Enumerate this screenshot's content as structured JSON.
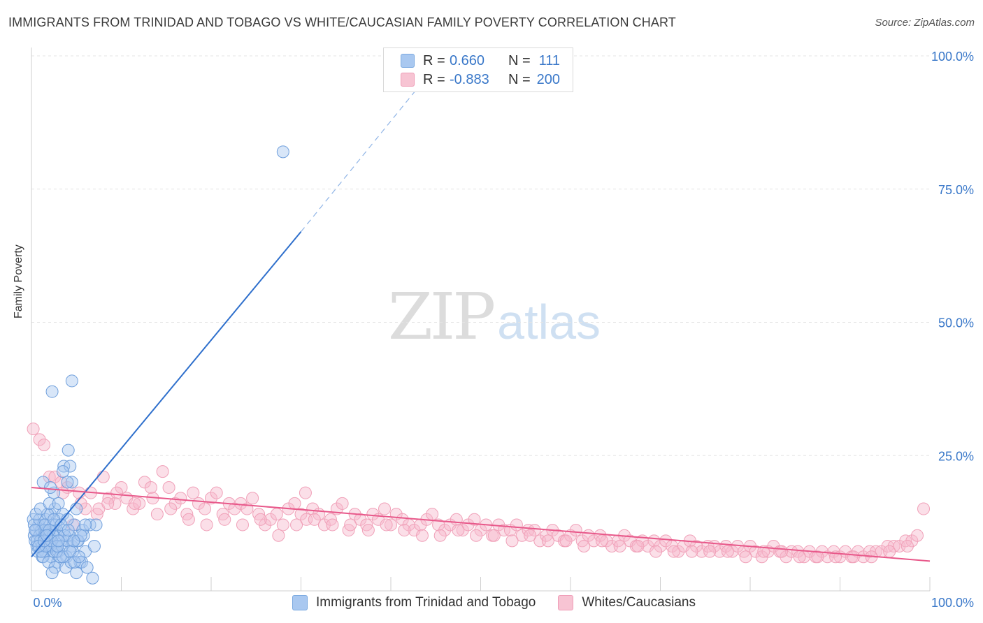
{
  "header": {
    "title": "IMMIGRANTS FROM TRINIDAD AND TOBAGO VS WHITE/CAUCASIAN FAMILY POVERTY CORRELATION CHART",
    "source": "Source: ZipAtlas.com"
  },
  "watermark": {
    "zip": "ZIP",
    "atlas": "atlas"
  },
  "legend": {
    "rows": [
      {
        "r_label": "R =",
        "r_value": "0.660",
        "n_label": "N =",
        "n_value": "111",
        "color": "#a9c8f0"
      },
      {
        "r_label": "R =",
        "r_value": "-0.883",
        "n_label": "N =",
        "n_value": "200",
        "color": "#f7b8cb"
      }
    ]
  },
  "bottom_legend": {
    "items": [
      {
        "label": "Immigrants from Trinidad and Tobago",
        "color": "#a9c8f0"
      },
      {
        "label": "Whites/Caucasians",
        "color": "#f7b8cb"
      }
    ]
  },
  "chart_data": {
    "type": "scatter",
    "title": "IMMIGRANTS FROM TRINIDAD AND TOBAGO VS WHITE/CAUCASIAN FAMILY POVERTY CORRELATION CHART",
    "xlabel": "",
    "ylabel": "Family Poverty",
    "xlim": [
      0,
      100
    ],
    "ylim": [
      0,
      100
    ],
    "x_tick_labels": [
      "0.0%",
      "100.0%"
    ],
    "y_ticks": [
      25,
      50,
      75,
      100
    ],
    "y_tick_labels": [
      "25.0%",
      "50.0%",
      "75.0%",
      "100.0%"
    ],
    "grid": "horizontal dashed",
    "legend_position": "top-center",
    "colors": {
      "blue": "#4a8ad8",
      "blue_line": "#2e6fcc",
      "pink": "#f08aa8",
      "pink_line": "#e8588a"
    },
    "series": [
      {
        "name": "Immigrants from Trinidad and Tobago",
        "r": 0.66,
        "n": 111,
        "points": [
          [
            0.3,
            10
          ],
          [
            0.5,
            11
          ],
          [
            0.4,
            9
          ],
          [
            0.6,
            8
          ],
          [
            0.8,
            12
          ],
          [
            0.2,
            13
          ],
          [
            0.7,
            7
          ],
          [
            0.9,
            10
          ],
          [
            1.0,
            9
          ],
          [
            1.1,
            11
          ],
          [
            1.2,
            8
          ],
          [
            1.3,
            12
          ],
          [
            1.4,
            10
          ],
          [
            1.5,
            7
          ],
          [
            1.6,
            13
          ],
          [
            1.7,
            9
          ],
          [
            1.8,
            11
          ],
          [
            1.9,
            8
          ],
          [
            2.0,
            10
          ],
          [
            2.1,
            14
          ],
          [
            2.2,
            6
          ],
          [
            2.3,
            9
          ],
          [
            2.4,
            12
          ],
          [
            2.5,
            7
          ],
          [
            2.6,
            15
          ],
          [
            2.7,
            8
          ],
          [
            2.8,
            11
          ],
          [
            2.9,
            5
          ],
          [
            3.0,
            10
          ],
          [
            3.1,
            13
          ],
          [
            0.3,
            12
          ],
          [
            0.6,
            9
          ],
          [
            0.9,
            13
          ],
          [
            1.2,
            6
          ],
          [
            1.5,
            11
          ],
          [
            1.8,
            14
          ],
          [
            2.1,
            8
          ],
          [
            2.4,
            10
          ],
          [
            2.7,
            12
          ],
          [
            3.0,
            7
          ],
          [
            3.3,
            9
          ],
          [
            3.6,
            11
          ],
          [
            3.9,
            6
          ],
          [
            4.2,
            10
          ],
          [
            4.5,
            8
          ],
          [
            4.8,
            12
          ],
          [
            5.1,
            9
          ],
          [
            5.4,
            5
          ],
          [
            5.7,
            11
          ],
          [
            6.0,
            7
          ],
          [
            0.5,
            14
          ],
          [
            1.0,
            15
          ],
          [
            1.5,
            12
          ],
          [
            2.0,
            16
          ],
          [
            2.5,
            18
          ],
          [
            3.0,
            16
          ],
          [
            3.5,
            14
          ],
          [
            4.0,
            13
          ],
          [
            4.5,
            20
          ],
          [
            5.0,
            15
          ],
          [
            1.3,
            6
          ],
          [
            1.9,
            5
          ],
          [
            2.6,
            4
          ],
          [
            3.2,
            6
          ],
          [
            3.8,
            4
          ],
          [
            4.4,
            5
          ],
          [
            5.0,
            3
          ],
          [
            5.6,
            5
          ],
          [
            6.2,
            4
          ],
          [
            6.8,
            2
          ],
          [
            1.1,
            7
          ],
          [
            1.6,
            8
          ],
          [
            2.2,
            9
          ],
          [
            2.8,
            7
          ],
          [
            3.4,
            8
          ],
          [
            4.0,
            9
          ],
          [
            4.6,
            7
          ],
          [
            5.2,
            9
          ],
          [
            5.8,
            10
          ],
          [
            6.5,
            12
          ],
          [
            2.3,
            3
          ],
          [
            3.5,
            6
          ],
          [
            4.3,
            7
          ],
          [
            5.5,
            10
          ],
          [
            7.0,
            8
          ],
          [
            7.2,
            12
          ],
          [
            6.0,
            12
          ],
          [
            4.8,
            5
          ],
          [
            3.7,
            10
          ],
          [
            2.0,
            11
          ],
          [
            0.8,
            8
          ],
          [
            1.4,
            9
          ],
          [
            2.5,
            13
          ],
          [
            3.3,
            12
          ],
          [
            4.1,
            11
          ],
          [
            4.7,
            9
          ],
          [
            5.3,
            6
          ],
          [
            2.9,
            8
          ],
          [
            1.7,
            10
          ],
          [
            0.4,
            11
          ],
          [
            2.3,
            37
          ],
          [
            4.5,
            39
          ],
          [
            3.6,
            23
          ],
          [
            4.1,
            26
          ],
          [
            4.3,
            23
          ],
          [
            1.3,
            20
          ],
          [
            3.5,
            22
          ],
          [
            2.1,
            19
          ],
          [
            4.0,
            20
          ],
          [
            28.0,
            82
          ],
          [
            3.0,
            9
          ]
        ],
        "fit": {
          "x": [
            0.0,
            30.0
          ],
          "y": [
            6.0,
            67.0
          ],
          "dashed_to": [
            43.0,
            94.0
          ]
        }
      },
      {
        "name": "Whites/Caucasians",
        "r": -0.883,
        "n": 200,
        "points": [
          [
            0.2,
            30
          ],
          [
            0.9,
            28
          ],
          [
            1.4,
            27
          ],
          [
            2.0,
            21
          ],
          [
            2.6,
            21
          ],
          [
            3.3,
            20
          ],
          [
            4.0,
            19
          ],
          [
            4.6,
            12
          ],
          [
            5.3,
            18
          ],
          [
            6.0,
            15
          ],
          [
            6.6,
            18
          ],
          [
            7.3,
            14
          ],
          [
            8.0,
            21
          ],
          [
            8.6,
            17
          ],
          [
            9.3,
            16
          ],
          [
            10.0,
            19
          ],
          [
            10.6,
            17
          ],
          [
            11.3,
            15
          ],
          [
            12.0,
            16
          ],
          [
            12.6,
            20
          ],
          [
            13.3,
            19
          ],
          [
            14.0,
            14
          ],
          [
            14.6,
            22
          ],
          [
            15.3,
            19
          ],
          [
            16.0,
            16
          ],
          [
            16.6,
            17
          ],
          [
            17.3,
            14
          ],
          [
            18.0,
            18
          ],
          [
            18.6,
            16
          ],
          [
            19.3,
            15
          ],
          [
            20.0,
            17
          ],
          [
            20.6,
            18
          ],
          [
            21.3,
            14
          ],
          [
            22.0,
            16
          ],
          [
            22.6,
            15
          ],
          [
            23.3,
            16
          ],
          [
            24.0,
            15
          ],
          [
            24.6,
            17
          ],
          [
            25.3,
            14
          ],
          [
            26.0,
            12
          ],
          [
            26.6,
            13
          ],
          [
            27.3,
            14
          ],
          [
            28.0,
            12
          ],
          [
            28.6,
            15
          ],
          [
            29.3,
            16
          ],
          [
            30.0,
            14
          ],
          [
            30.6,
            13
          ],
          [
            31.3,
            15
          ],
          [
            32.0,
            14
          ],
          [
            32.6,
            12
          ],
          [
            33.3,
            13
          ],
          [
            34.0,
            15
          ],
          [
            34.6,
            16
          ],
          [
            35.3,
            11
          ],
          [
            36.0,
            14
          ],
          [
            36.6,
            13
          ],
          [
            37.3,
            12
          ],
          [
            38.0,
            14
          ],
          [
            38.6,
            13
          ],
          [
            39.3,
            15
          ],
          [
            40.0,
            12
          ],
          [
            40.6,
            14
          ],
          [
            41.3,
            13
          ],
          [
            42.0,
            12
          ],
          [
            42.6,
            11
          ],
          [
            43.3,
            12
          ],
          [
            44.0,
            13
          ],
          [
            44.6,
            14
          ],
          [
            45.3,
            12
          ],
          [
            46.0,
            11
          ],
          [
            46.6,
            12
          ],
          [
            47.3,
            13
          ],
          [
            48.0,
            11
          ],
          [
            48.6,
            12
          ],
          [
            49.3,
            13
          ],
          [
            50.0,
            11
          ],
          [
            50.6,
            12
          ],
          [
            51.3,
            10
          ],
          [
            52.0,
            12
          ],
          [
            52.6,
            11
          ],
          [
            53.3,
            11
          ],
          [
            54.0,
            12
          ],
          [
            54.6,
            10
          ],
          [
            55.3,
            11
          ],
          [
            56.0,
            11
          ],
          [
            56.6,
            9
          ],
          [
            57.3,
            10
          ],
          [
            58.0,
            11
          ],
          [
            58.6,
            10
          ],
          [
            59.3,
            9
          ],
          [
            60.0,
            10
          ],
          [
            60.6,
            11
          ],
          [
            61.3,
            9
          ],
          [
            62.0,
            10
          ],
          [
            62.6,
            9
          ],
          [
            63.3,
            10
          ],
          [
            64.0,
            9
          ],
          [
            64.6,
            8
          ],
          [
            65.3,
            9
          ],
          [
            66.0,
            10
          ],
          [
            66.6,
            9
          ],
          [
            67.3,
            8
          ],
          [
            68.0,
            9
          ],
          [
            68.6,
            8
          ],
          [
            69.3,
            9
          ],
          [
            70.0,
            8
          ],
          [
            70.6,
            9
          ],
          [
            71.3,
            8
          ],
          [
            72.0,
            7
          ],
          [
            72.6,
            8
          ],
          [
            73.3,
            9
          ],
          [
            74.0,
            8
          ],
          [
            74.6,
            7
          ],
          [
            75.3,
            8
          ],
          [
            76.0,
            8
          ],
          [
            76.6,
            7
          ],
          [
            77.3,
            8
          ],
          [
            78.0,
            7
          ],
          [
            78.6,
            8
          ],
          [
            79.3,
            7
          ],
          [
            80.0,
            8
          ],
          [
            80.6,
            7
          ],
          [
            81.3,
            6
          ],
          [
            82.0,
            7
          ],
          [
            82.6,
            8
          ],
          [
            83.3,
            7
          ],
          [
            84.0,
            6
          ],
          [
            84.6,
            7
          ],
          [
            85.3,
            7
          ],
          [
            86.0,
            6
          ],
          [
            86.6,
            7
          ],
          [
            87.3,
            6
          ],
          [
            88.0,
            7
          ],
          [
            88.6,
            6
          ],
          [
            89.3,
            7
          ],
          [
            90.0,
            6
          ],
          [
            90.6,
            7
          ],
          [
            91.3,
            6
          ],
          [
            92.0,
            7
          ],
          [
            92.6,
            6
          ],
          [
            93.3,
            7
          ],
          [
            94.0,
            7
          ],
          [
            94.6,
            7
          ],
          [
            95.3,
            8
          ],
          [
            96.0,
            8
          ],
          [
            96.6,
            8
          ],
          [
            97.3,
            9
          ],
          [
            98.0,
            9
          ],
          [
            98.6,
            10
          ],
          [
            99.3,
            15
          ],
          [
            3.5,
            18
          ],
          [
            5.5,
            16
          ],
          [
            7.5,
            15
          ],
          [
            9.5,
            18
          ],
          [
            11.5,
            16
          ],
          [
            13.5,
            17
          ],
          [
            15.5,
            15
          ],
          [
            17.5,
            13
          ],
          [
            19.5,
            12
          ],
          [
            21.5,
            13
          ],
          [
            23.5,
            12
          ],
          [
            25.5,
            13
          ],
          [
            27.5,
            10
          ],
          [
            29.5,
            12
          ],
          [
            31.5,
            13
          ],
          [
            33.5,
            12
          ],
          [
            35.5,
            12
          ],
          [
            37.5,
            11
          ],
          [
            39.5,
            12
          ],
          [
            41.5,
            11
          ],
          [
            43.5,
            10
          ],
          [
            45.5,
            10
          ],
          [
            47.5,
            11
          ],
          [
            49.5,
            10
          ],
          [
            51.5,
            10
          ],
          [
            53.5,
            9
          ],
          [
            55.5,
            10
          ],
          [
            57.5,
            9
          ],
          [
            59.5,
            9
          ],
          [
            61.5,
            8
          ],
          [
            63.5,
            9
          ],
          [
            65.5,
            8
          ],
          [
            67.5,
            8
          ],
          [
            69.5,
            7
          ],
          [
            71.5,
            7
          ],
          [
            73.5,
            7
          ],
          [
            75.5,
            7
          ],
          [
            77.5,
            7
          ],
          [
            79.5,
            6
          ],
          [
            81.5,
            7
          ],
          [
            83.5,
            7
          ],
          [
            85.5,
            6
          ],
          [
            87.5,
            6
          ],
          [
            89.5,
            6
          ],
          [
            91.5,
            6
          ],
          [
            93.5,
            6
          ],
          [
            95.5,
            7
          ],
          [
            97.5,
            8
          ],
          [
            30.5,
            18
          ],
          [
            8.5,
            16
          ]
        ],
        "fit": {
          "x": [
            0.0,
            100.0
          ],
          "y": [
            19.0,
            5.2
          ]
        }
      }
    ]
  }
}
